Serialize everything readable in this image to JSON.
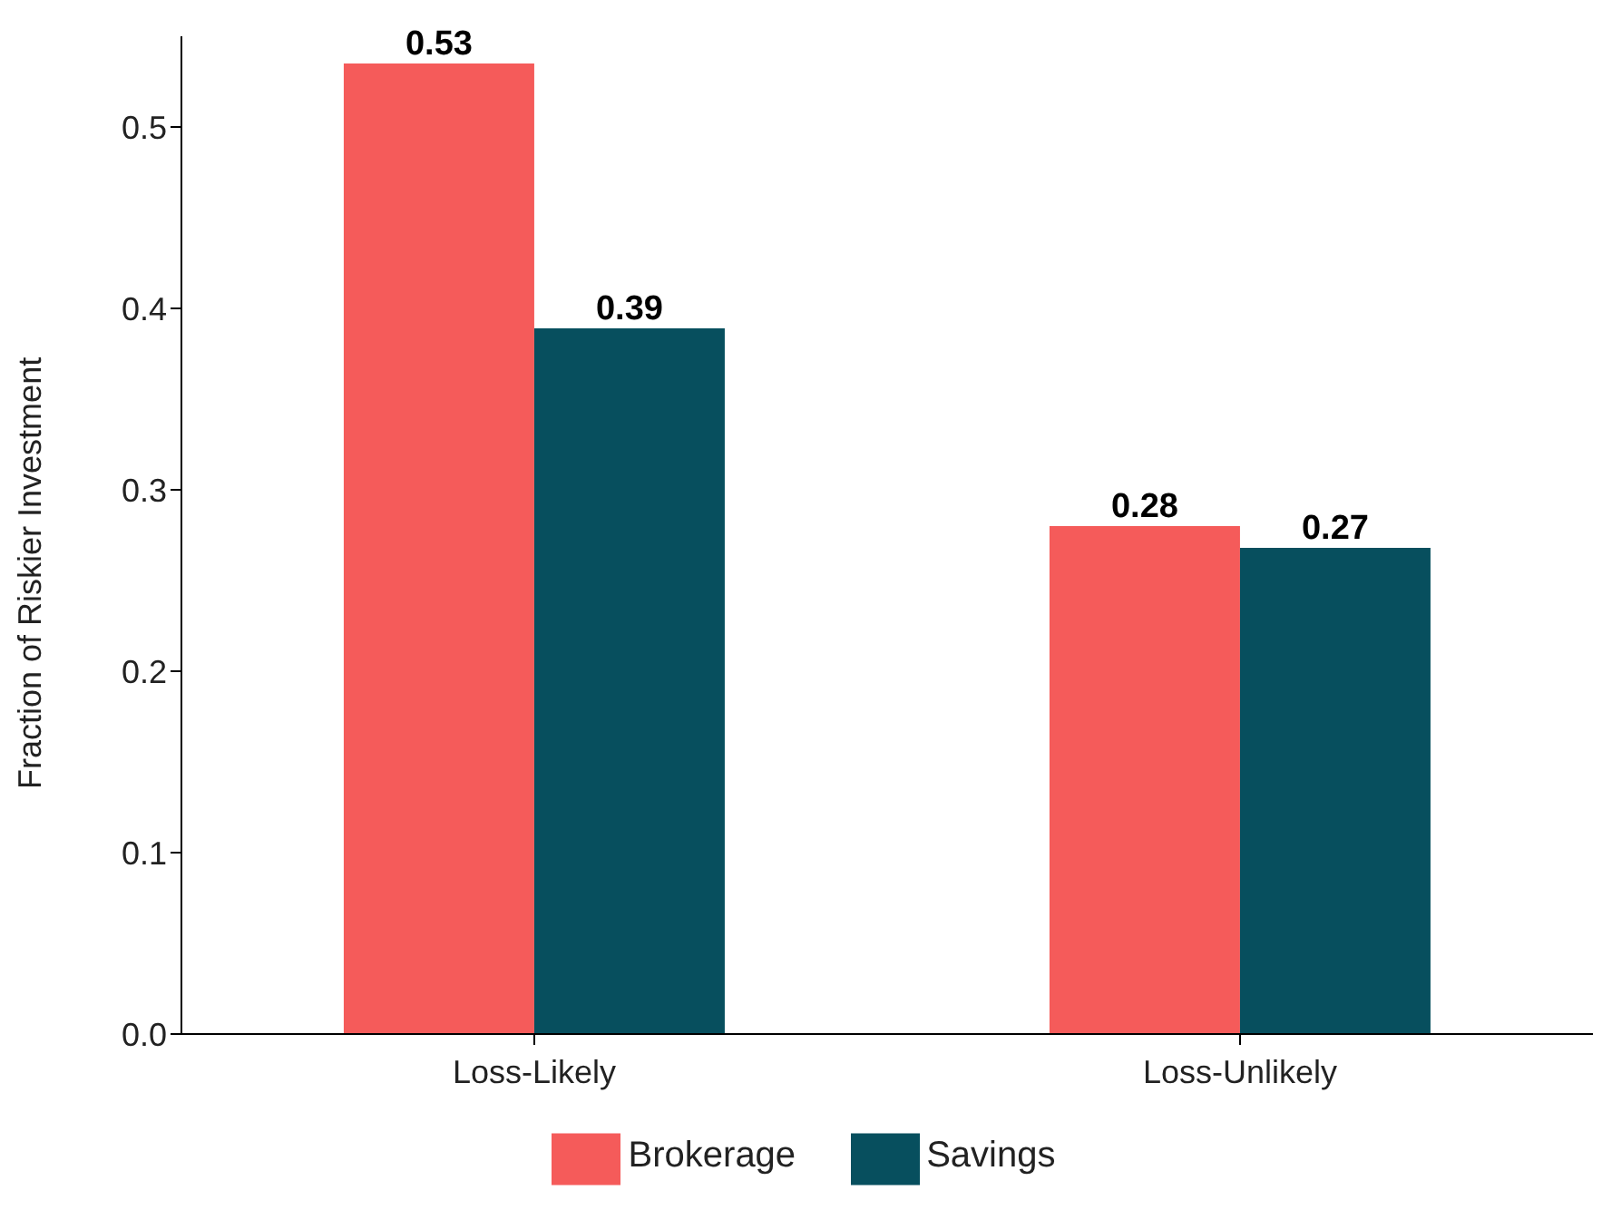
{
  "chart_data": {
    "type": "bar",
    "ylabel": "Fraction of Riskier Investment",
    "categories": [
      "Loss-Likely",
      "Loss-Unlikely"
    ],
    "series": [
      {
        "name": "Brokerage",
        "color": "#f55b5a",
        "values": [
          0.535,
          0.28
        ],
        "value_labels": [
          "0.53",
          "0.28"
        ]
      },
      {
        "name": "Savings",
        "color": "#074f5e",
        "values": [
          0.389,
          0.268
        ],
        "value_labels": [
          "0.39",
          "0.27"
        ]
      }
    ],
    "ylim": [
      0,
      0.55
    ],
    "yticks": [
      {
        "value": 0,
        "label": "0.0"
      },
      0.1,
      0.2,
      0.3,
      0.4,
      0.5
    ],
    "grid": false,
    "legend": "bottom"
  }
}
